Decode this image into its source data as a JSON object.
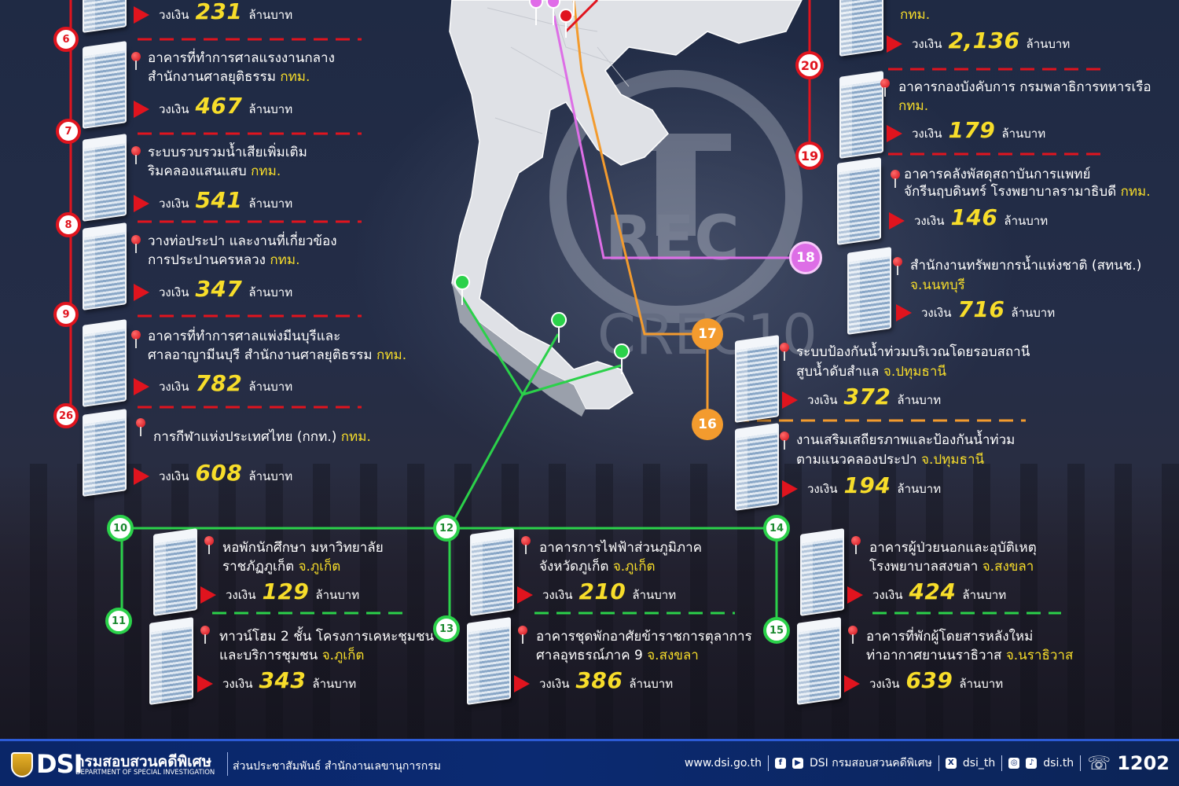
{
  "colors": {
    "accent_red": "#e0141e",
    "accent_yellow": "#f7dd2a",
    "route_green": "#2bd14a",
    "route_orange": "#f39b2e",
    "route_purple": "#dd6ee6",
    "footer_blue": "#0b2a72"
  },
  "labels": {
    "amount_prefix": "วงเงิน",
    "amount_unit": "ล้านบาท"
  },
  "watermark": {
    "text": "CREC10",
    "logo_text": "REC"
  },
  "projects": [
    {
      "id": "top-left",
      "number": "",
      "title1": "",
      "title2_plain": "",
      "title2_highlight": "",
      "amount": "231"
    },
    {
      "id": "6",
      "number": "6",
      "title1": "อาคารที่ทำการศาลแรงงานกลาง",
      "title2_plain": "สำนักงานศาลยุติธรรม ",
      "title2_highlight": "กทม.",
      "amount": "467"
    },
    {
      "id": "7",
      "number": "7",
      "title1": "ระบบรวบรวมน้ำเสียเพิ่มเติม",
      "title2_plain": "ริมคลองแสนแสบ ",
      "title2_highlight": "กทม.",
      "amount": "541"
    },
    {
      "id": "8",
      "number": "8",
      "title1": "วางท่อประปา และงานที่เกี่ยวข้อง",
      "title2_plain": "การประปานครหลวง ",
      "title2_highlight": "กทม.",
      "amount": "347"
    },
    {
      "id": "9",
      "number": "9",
      "title1": "อาคารที่ทำการศาลแพ่งมีนบุรีและ",
      "title2_plain": "ศาลอาญามีนบุรี สำนักงานศาลยุติธรรม ",
      "title2_highlight": "กทม.",
      "amount": "782"
    },
    {
      "id": "26",
      "number": "26",
      "title1": "การกีฬาแห่งประเทศไทย (กกท.) ",
      "title1_highlight": "กทม.",
      "title2_plain": "",
      "title2_highlight": "",
      "amount": "608"
    },
    {
      "id": "top-right",
      "number": "",
      "title1": "",
      "title2_plain": "",
      "title2_highlight": "กทม.",
      "amount": "2,136"
    },
    {
      "id": "20",
      "number": "20",
      "title1": "อาคารกองบังคับการ กรมพลาธิการทหารเรือ",
      "title2_plain": "",
      "title2_highlight": "กทม.",
      "amount": "179"
    },
    {
      "id": "19",
      "number": "19",
      "title1": "อาคารคลังพัสดุสถาบันการแพทย์",
      "title2_plain": "จักรีนฤบดินทร์ โรงพยาบาลรามาธิบดี ",
      "title2_highlight": "กทม.",
      "amount": "146"
    },
    {
      "id": "18",
      "number": "18",
      "title1": "สำนักงานทรัพยากรน้ำแห่งชาติ (สทนช.)",
      "title2_plain": "",
      "title2_highlight": "จ.นนทบุรี",
      "amount": "716"
    },
    {
      "id": "17",
      "number": "17",
      "title1": "ระบบป้องกันน้ำท่วมบริเวณโดยรอบสถานี",
      "title2_plain": "สูบน้ำดับสำแล ",
      "title2_highlight": "จ.ปทุมธานี",
      "amount": "372"
    },
    {
      "id": "16",
      "number": "16",
      "title1": "งานเสริมเสถียรภาพและป้องกันน้ำท่วม",
      "title2_plain": "ตามแนวคลองประปา ",
      "title2_highlight": "จ.ปทุมธานี",
      "amount": "194"
    },
    {
      "id": "10",
      "number": "10",
      "title1": "หอพักนักศึกษา มหาวิทยาลัย",
      "title2_plain": "ราชภัฏภูเก็ต ",
      "title2_highlight": "จ.ภูเก็ต",
      "amount": "129"
    },
    {
      "id": "11",
      "number": "11",
      "title1": "ทาวน์โฮม 2 ชั้น โครงการเคหะชุมชน",
      "title2_plain": "และบริการชุมชน ",
      "title2_highlight": "จ.ภูเก็ต",
      "amount": "343"
    },
    {
      "id": "12",
      "number": "12",
      "title1": "อาคารการไฟฟ้าส่วนภูมิภาค",
      "title2_plain": "จังหวัดภูเก็ต ",
      "title2_highlight": "จ.ภูเก็ต",
      "amount": "210"
    },
    {
      "id": "13",
      "number": "13",
      "title1": "อาคารชุดพักอาศัยข้าราชการตุลาการ",
      "title2_plain": "ศาลอุทธรณ์ภาค 9 ",
      "title2_highlight": "จ.สงขลา",
      "amount": "386"
    },
    {
      "id": "14",
      "number": "14",
      "title1": "อาคารผู้ป่วยนอกและอุบัติเหตุ",
      "title2_plain": "โรงพยาบาลสงขลา ",
      "title2_highlight": "จ.สงขลา",
      "amount": "424"
    },
    {
      "id": "15",
      "number": "15",
      "title1": "อาคารที่พักผู้โดยสารหลังใหม่",
      "title2_plain": "ท่าอากาศยานนราธิวาส ",
      "title2_highlight": "จ.นราธิวาส",
      "amount": "639"
    }
  ],
  "footer": {
    "logo_text": "DSI",
    "org_th": "กรมสอบสวนคดีพิเศษ",
    "org_en": "DEPARTMENT OF SPECIAL INVESTIGATION",
    "unit": "ส่วนประชาสัมพันธ์ สำนักงานเลขานุการกรม",
    "website": "www.dsi.go.th",
    "facebook_icon": "facebook-icon",
    "youtube_icon": "youtube-icon",
    "social_name": "DSI กรมสอบสวนคดีพิเศษ",
    "x_icon": "x-icon",
    "x_handle": "dsi_th",
    "instagram_icon": "instagram-icon",
    "tiktok_icon": "tiktok-icon",
    "tiktok_handle": "dsi.th",
    "phone_icon": "phone-icon",
    "phone": "1202"
  }
}
